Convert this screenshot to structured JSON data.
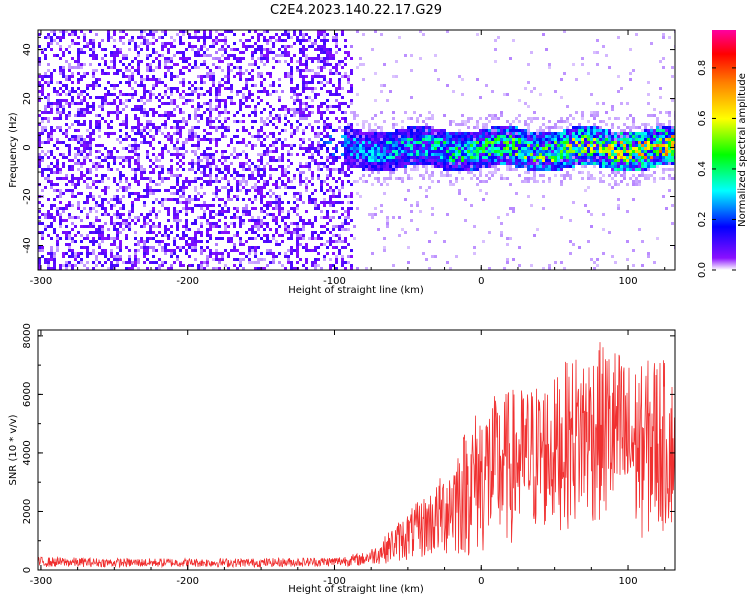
{
  "title": "C2E4.2023.140.22.17.G29",
  "chart_data": [
    {
      "type": "heatmap",
      "xlabel": "Height of straight line (km)",
      "ylabel": "Frequency (Hz)",
      "xlim": [
        -302,
        132
      ],
      "ylim": [
        -50,
        48
      ],
      "xticks": [
        -300,
        -200,
        -100,
        0,
        100
      ],
      "xtick_labels": [
        "-300",
        "-200",
        "-100",
        "0",
        "100"
      ],
      "yticks": [
        -40,
        -20,
        0,
        20,
        40
      ],
      "ytick_labels": [
        "-40",
        "-20",
        "0",
        "20",
        "40"
      ],
      "colorbar": {
        "label": "Normalized spectral amplitude",
        "range": [
          0,
          0.95
        ],
        "ticks": [
          0.0,
          0.2,
          0.4,
          0.6,
          0.8
        ],
        "tick_labels": [
          "0.0",
          "0.2",
          "0.4",
          "0.6",
          "0.8"
        ],
        "colors": [
          "#ffffff",
          "#7a00ff",
          "#0000ff",
          "#00ffff",
          "#00ff00",
          "#ffff00",
          "#ff8000",
          "#ff0000",
          "#ff00a0"
        ]
      },
      "regions": [
        {
          "x_range": [
            -302,
            -90
          ],
          "freq_range": [
            -50,
            48
          ],
          "amplitude": [
            0.0,
            0.15
          ],
          "description": "broadband noise"
        },
        {
          "x_range": [
            -90,
            -65
          ],
          "freq_range": [
            -50,
            48
          ],
          "amplitude": [
            0.0,
            0.05
          ],
          "description": "sparse noise"
        },
        {
          "x_range": [
            -110,
            132
          ],
          "freq_center": 0,
          "freq_halfwidth": 7,
          "amplitude": [
            0.2,
            0.9
          ],
          "description": "signal band"
        }
      ],
      "grid": false
    },
    {
      "type": "line",
      "xlabel": "Height of straight line (km)",
      "ylabel": "SNR (10 * v/v)",
      "xlim": [
        -302,
        132
      ],
      "ylim": [
        0,
        8200
      ],
      "xticks": [
        -300,
        -200,
        -100,
        0,
        100
      ],
      "xtick_labels": [
        "-300",
        "-200",
        "-100",
        "0",
        "100"
      ],
      "yticks": [
        0,
        2000,
        4000,
        6000,
        8000
      ],
      "ytick_labels": [
        "0",
        "2000",
        "4000",
        "6000",
        "8000"
      ],
      "color": "#f03030",
      "envelope": {
        "x": [
          -302,
          -250,
          -200,
          -150,
          -100,
          -80,
          -70,
          -60,
          -50,
          -40,
          -30,
          -20,
          -10,
          0,
          10,
          20,
          30,
          40,
          50,
          60,
          70,
          80,
          90,
          100,
          110,
          120,
          132
        ],
        "min": [
          100,
          100,
          100,
          100,
          120,
          150,
          200,
          250,
          300,
          350,
          400,
          400,
          400,
          400,
          600,
          800,
          1000,
          1200,
          1300,
          1400,
          1500,
          1500,
          1400,
          1200,
          1000,
          1100,
          1500
        ],
        "max": [
          450,
          400,
          400,
          400,
          450,
          600,
          900,
          1500,
          2000,
          2500,
          3000,
          4000,
          5000,
          5800,
          6000,
          6200,
          6300,
          6500,
          6600,
          7300,
          7600,
          7800,
          7800,
          7200,
          7000,
          7600,
          6500
        ]
      },
      "grid": false
    }
  ]
}
